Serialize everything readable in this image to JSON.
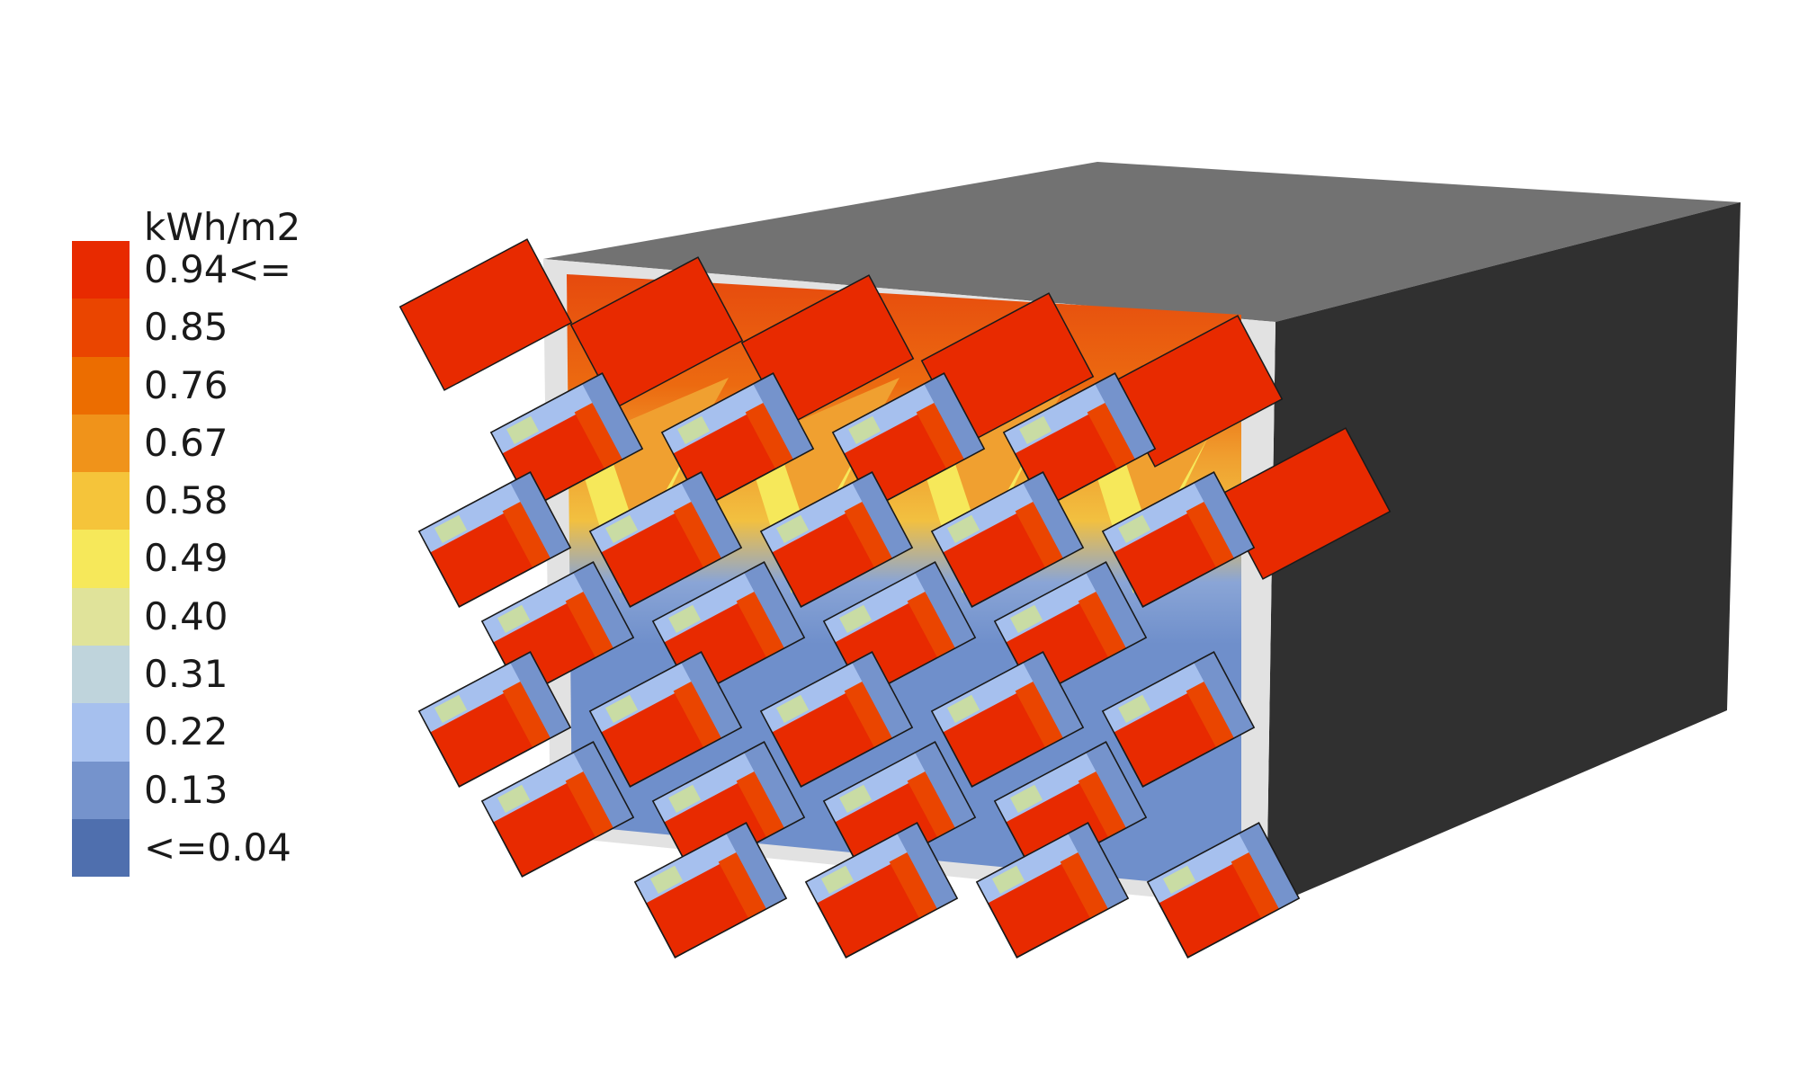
{
  "legend": {
    "unit": "kWh/m2",
    "scale_colors": [
      "#e82a00",
      "#ea4500",
      "#ec6d00",
      "#f0931a",
      "#f5c43a",
      "#f6e85a",
      "#e0e39a",
      "#bfd4dc",
      "#a6c0ee",
      "#7593cc",
      "#4f6fae"
    ],
    "scale_labels": [
      "0.94<=",
      "0.85",
      "0.76",
      "0.67",
      "0.58",
      "0.49",
      "0.40",
      "0.31",
      "0.22",
      "0.13",
      "<=0.04"
    ]
  },
  "colors": {
    "roof": "#727272",
    "side": "#303030",
    "frame": "#e2e2e2",
    "wall_top": "#e64a0e",
    "wall_mid": "#f2c040",
    "wall_low": "#6f8fcb",
    "shade_hot": "#e82a00",
    "shade_warm": "#ea4500",
    "shade_cool": "#a6c0ee",
    "shade_cooler": "#7593cc",
    "shade_pale": "#c9dca4",
    "edge": "#1a1a1a"
  }
}
